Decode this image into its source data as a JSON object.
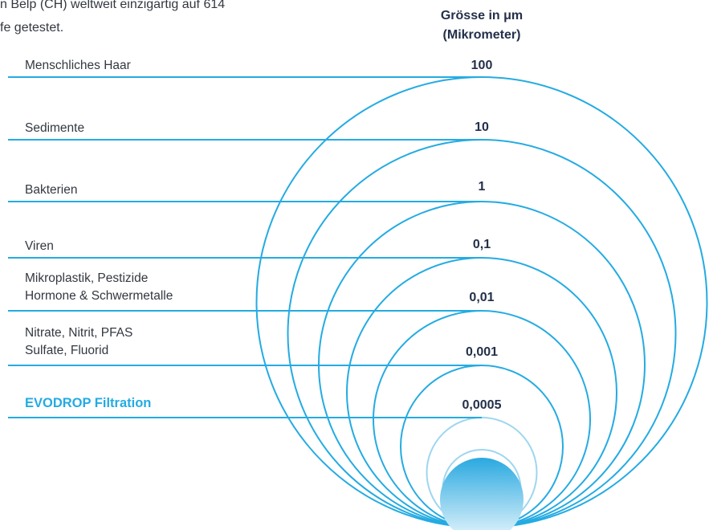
{
  "intro": {
    "line1": "n Belp (CH) weltweit einzigartig auf 614",
    "line2": "fe getestet."
  },
  "size_header": {
    "line1": "Grösse in μm",
    "line2": "(Mikrometer)"
  },
  "rows": [
    {
      "label_lines": [
        "Menschliches Haar"
      ],
      "value": "100"
    },
    {
      "label_lines": [
        "Sedimente"
      ],
      "value": "10"
    },
    {
      "label_lines": [
        "Bakterien"
      ],
      "value": "1"
    },
    {
      "label_lines": [
        "Viren"
      ],
      "value": "0,1"
    },
    {
      "label_lines": [
        "Mikroplastik, Pestizide",
        "Hormone & Schwermetalle"
      ],
      "value": "0,01"
    },
    {
      "label_lines": [
        "Nitrate, Nitrit, PFAS",
        "Sulfate, Fluorid"
      ],
      "value": "0,001"
    },
    {
      "label_lines": [
        "EVODROP Filtration"
      ],
      "value": "0,0005",
      "highlight": true
    }
  ],
  "colors": {
    "line_primary": "#24abe2",
    "line_light": "#9ed6f0",
    "highlight_text": "#24abe2",
    "value_text": "#23304a",
    "drop_top": "#2aa9e0",
    "drop_bottom": "#eaf7fd"
  }
}
